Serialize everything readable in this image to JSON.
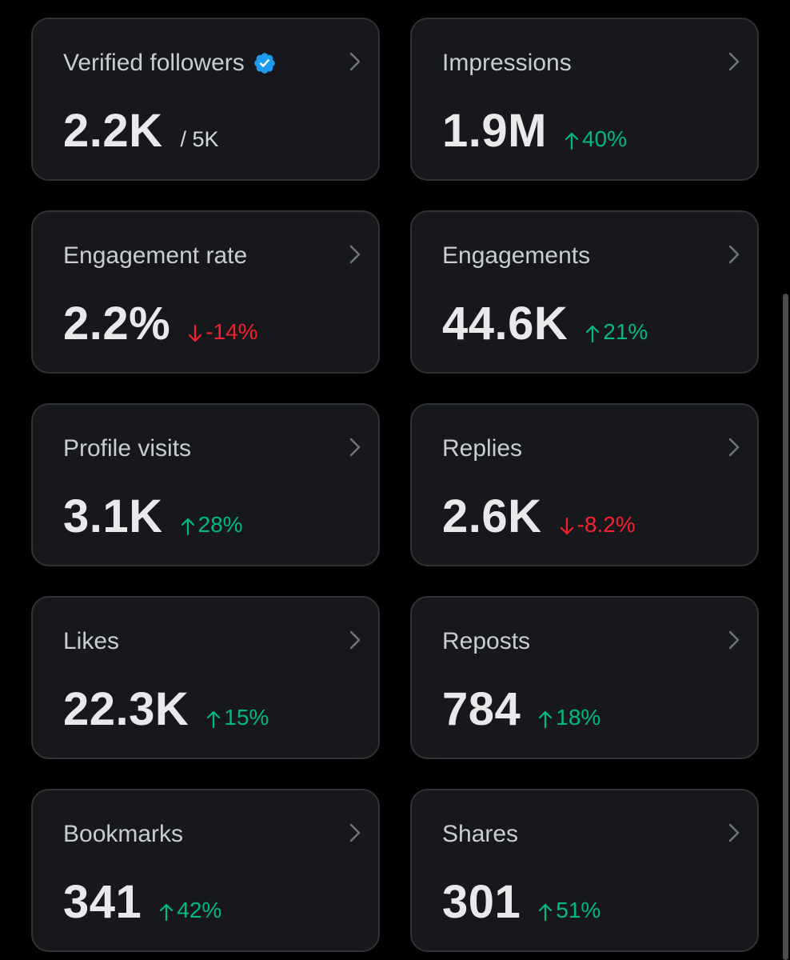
{
  "metrics": [
    {
      "label": "Verified followers",
      "value": "2.2K",
      "suffix": "/ 5K",
      "change": null,
      "direction": null,
      "verified": true
    },
    {
      "label": "Impressions",
      "value": "1.9M",
      "suffix": null,
      "change": "40%",
      "direction": "up",
      "verified": false
    },
    {
      "label": "Engagement rate",
      "value": "2.2%",
      "suffix": null,
      "change": "-14%",
      "direction": "down",
      "verified": false
    },
    {
      "label": "Engagements",
      "value": "44.6K",
      "suffix": null,
      "change": "21%",
      "direction": "up",
      "verified": false
    },
    {
      "label": "Profile visits",
      "value": "3.1K",
      "suffix": null,
      "change": "28%",
      "direction": "up",
      "verified": false
    },
    {
      "label": "Replies",
      "value": "2.6K",
      "suffix": null,
      "change": "-8.2%",
      "direction": "down",
      "verified": false
    },
    {
      "label": "Likes",
      "value": "22.3K",
      "suffix": null,
      "change": "15%",
      "direction": "up",
      "verified": false
    },
    {
      "label": "Reposts",
      "value": "784",
      "suffix": null,
      "change": "18%",
      "direction": "up",
      "verified": false
    },
    {
      "label": "Bookmarks",
      "value": "341",
      "suffix": null,
      "change": "42%",
      "direction": "up",
      "verified": false
    },
    {
      "label": "Shares",
      "value": "301",
      "suffix": null,
      "change": "51%",
      "direction": "up",
      "verified": false
    }
  ],
  "icons": {
    "verified": "verified-badge-icon",
    "chevron": "chevron-right-icon",
    "up": "arrow-up-icon",
    "down": "arrow-down-icon"
  },
  "colors": {
    "background": "#000000",
    "card": "#16181c",
    "card_border": "#2f3336",
    "positive": "#00ba7c",
    "negative": "#f4212e",
    "verified": "#1d9bf0"
  }
}
